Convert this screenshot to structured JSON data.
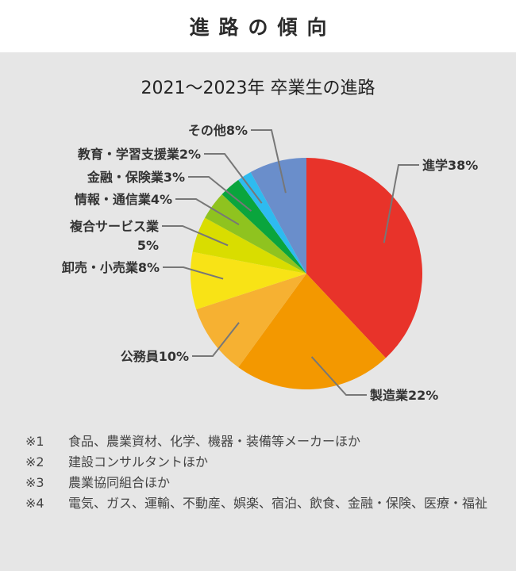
{
  "page_title": "進路の傾向",
  "chart_data": {
    "type": "pie",
    "title": "2021〜2023年 卒業生の進路",
    "unit": "%",
    "slices": [
      {
        "label": "進学",
        "value": 38,
        "color": "#e8332a"
      },
      {
        "label": "製造業",
        "value": 22,
        "color": "#f39800"
      },
      {
        "label": "公務員",
        "value": 10,
        "color": "#f6b132"
      },
      {
        "label": "卸売・小売業",
        "value": 8,
        "color": "#f8e316"
      },
      {
        "label": "複合サービス業",
        "value": 5,
        "color": "#d9dd00"
      },
      {
        "label": "情報・通信業",
        "value": 4,
        "color": "#8fc31f"
      },
      {
        "label": "金融・保険業",
        "value": 3,
        "color": "#0aa53d"
      },
      {
        "label": "教育・学習支援業",
        "value": 2,
        "color": "#2ebbef"
      },
      {
        "label": "その他",
        "value": 8,
        "color": "#6a8ecb"
      }
    ],
    "leader_color": "#777777"
  },
  "notes": [
    {
      "mark": "※1",
      "text": "食品、農業資材、化学、機器・装備等メーカーほか"
    },
    {
      "mark": "※2",
      "text": "建設コンサルタントほか"
    },
    {
      "mark": "※3",
      "text": "農業協同組合ほか"
    },
    {
      "mark": "※4",
      "text": "電気、ガス、運輸、不動産、娯楽、宿泊、飲食、金融・保険、医療・福祉"
    }
  ]
}
